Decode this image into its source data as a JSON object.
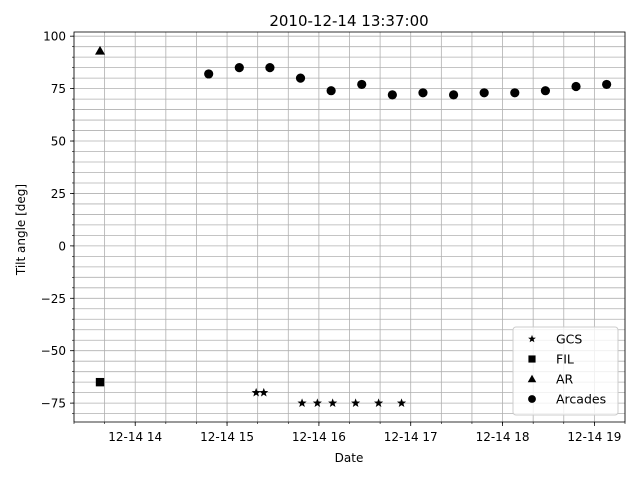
{
  "chart_data": {
    "type": "scatter",
    "title": "2010-12-14 13:37:00",
    "xlabel": "Date",
    "ylabel": "Tilt angle [deg]",
    "xlim": [
      "2010-12-14 13:20",
      "2010-12-14 19:20"
    ],
    "ylim": [
      -84,
      102
    ],
    "x_ticks": [
      {
        "label": "12-14 14",
        "value": "2010-12-14 14:00"
      },
      {
        "label": "12-14 15",
        "value": "2010-12-14 15:00"
      },
      {
        "label": "12-14 16",
        "value": "2010-12-14 16:00"
      },
      {
        "label": "12-14 17",
        "value": "2010-12-14 17:00"
      },
      {
        "label": "12-14 18",
        "value": "2010-12-14 18:00"
      },
      {
        "label": "12-14 19",
        "value": "2010-12-14 19:00"
      }
    ],
    "y_ticks": [
      {
        "label": "100",
        "value": 100
      },
      {
        "label": "75",
        "value": 75
      },
      {
        "label": "50",
        "value": 50
      },
      {
        "label": "25",
        "value": 25
      },
      {
        "label": "0",
        "value": 0
      },
      {
        "label": "−25",
        "value": -25
      },
      {
        "label": "−50",
        "value": -50
      },
      {
        "label": "−75",
        "value": -75
      }
    ],
    "grid": true,
    "legend_position": "lower-right",
    "series": [
      {
        "name": "GCS",
        "marker": "star",
        "color": "#000000",
        "points": [
          {
            "x": "2010-12-14 15:19",
            "y": -70
          },
          {
            "x": "2010-12-14 15:24",
            "y": -70
          },
          {
            "x": "2010-12-14 15:49",
            "y": -75
          },
          {
            "x": "2010-12-14 15:59",
            "y": -75
          },
          {
            "x": "2010-12-14 16:09",
            "y": -75
          },
          {
            "x": "2010-12-14 16:24",
            "y": -75
          },
          {
            "x": "2010-12-14 16:39",
            "y": -75
          },
          {
            "x": "2010-12-14 16:54",
            "y": -75
          }
        ]
      },
      {
        "name": "FIL",
        "marker": "square",
        "color": "#000000",
        "points": [
          {
            "x": "2010-12-14 13:37",
            "y": -65
          }
        ]
      },
      {
        "name": "AR",
        "marker": "triangle",
        "color": "#000000",
        "points": [
          {
            "x": "2010-12-14 13:37",
            "y": 93
          }
        ]
      },
      {
        "name": "Arcades",
        "marker": "circle",
        "color": "#000000",
        "points": [
          {
            "x": "2010-12-14 14:48",
            "y": 82
          },
          {
            "x": "2010-12-14 15:08",
            "y": 85
          },
          {
            "x": "2010-12-14 15:28",
            "y": 85
          },
          {
            "x": "2010-12-14 15:48",
            "y": 80
          },
          {
            "x": "2010-12-14 16:08",
            "y": 74
          },
          {
            "x": "2010-12-14 16:28",
            "y": 77
          },
          {
            "x": "2010-12-14 16:48",
            "y": 72
          },
          {
            "x": "2010-12-14 17:08",
            "y": 73
          },
          {
            "x": "2010-12-14 17:28",
            "y": 72
          },
          {
            "x": "2010-12-14 17:48",
            "y": 73
          },
          {
            "x": "2010-12-14 18:08",
            "y": 73
          },
          {
            "x": "2010-12-14 18:28",
            "y": 74
          },
          {
            "x": "2010-12-14 18:48",
            "y": 76
          },
          {
            "x": "2010-12-14 19:08",
            "y": 77
          }
        ]
      }
    ]
  }
}
